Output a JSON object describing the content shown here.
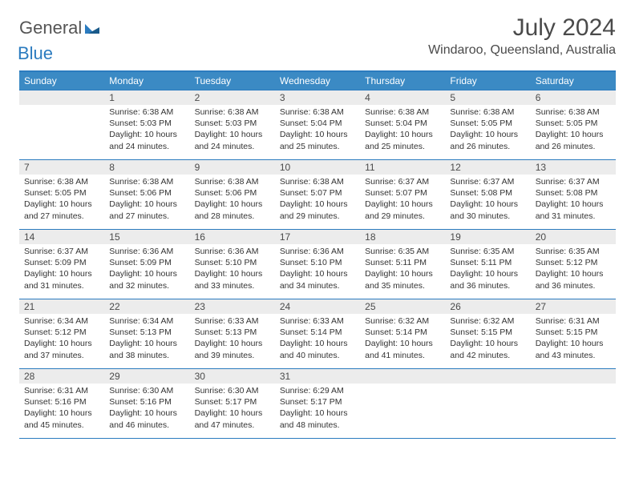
{
  "logo": {
    "general": "General",
    "blue": "Blue"
  },
  "title": "July 2024",
  "location": "Windaroo, Queensland, Australia",
  "colors": {
    "accent": "#2b7bbf",
    "header_bg": "#3b8ac4",
    "daynum_bg": "#ececec",
    "text": "#4a4a4a"
  },
  "dow": [
    "Sunday",
    "Monday",
    "Tuesday",
    "Wednesday",
    "Thursday",
    "Friday",
    "Saturday"
  ],
  "weeks": [
    [
      {
        "n": "",
        "sr": "",
        "ss": "",
        "dl": ""
      },
      {
        "n": "1",
        "sr": "6:38 AM",
        "ss": "5:03 PM",
        "dl": "10 hours and 24 minutes."
      },
      {
        "n": "2",
        "sr": "6:38 AM",
        "ss": "5:03 PM",
        "dl": "10 hours and 24 minutes."
      },
      {
        "n": "3",
        "sr": "6:38 AM",
        "ss": "5:04 PM",
        "dl": "10 hours and 25 minutes."
      },
      {
        "n": "4",
        "sr": "6:38 AM",
        "ss": "5:04 PM",
        "dl": "10 hours and 25 minutes."
      },
      {
        "n": "5",
        "sr": "6:38 AM",
        "ss": "5:05 PM",
        "dl": "10 hours and 26 minutes."
      },
      {
        "n": "6",
        "sr": "6:38 AM",
        "ss": "5:05 PM",
        "dl": "10 hours and 26 minutes."
      }
    ],
    [
      {
        "n": "7",
        "sr": "6:38 AM",
        "ss": "5:05 PM",
        "dl": "10 hours and 27 minutes."
      },
      {
        "n": "8",
        "sr": "6:38 AM",
        "ss": "5:06 PM",
        "dl": "10 hours and 27 minutes."
      },
      {
        "n": "9",
        "sr": "6:38 AM",
        "ss": "5:06 PM",
        "dl": "10 hours and 28 minutes."
      },
      {
        "n": "10",
        "sr": "6:38 AM",
        "ss": "5:07 PM",
        "dl": "10 hours and 29 minutes."
      },
      {
        "n": "11",
        "sr": "6:37 AM",
        "ss": "5:07 PM",
        "dl": "10 hours and 29 minutes."
      },
      {
        "n": "12",
        "sr": "6:37 AM",
        "ss": "5:08 PM",
        "dl": "10 hours and 30 minutes."
      },
      {
        "n": "13",
        "sr": "6:37 AM",
        "ss": "5:08 PM",
        "dl": "10 hours and 31 minutes."
      }
    ],
    [
      {
        "n": "14",
        "sr": "6:37 AM",
        "ss": "5:09 PM",
        "dl": "10 hours and 31 minutes."
      },
      {
        "n": "15",
        "sr": "6:36 AM",
        "ss": "5:09 PM",
        "dl": "10 hours and 32 minutes."
      },
      {
        "n": "16",
        "sr": "6:36 AM",
        "ss": "5:10 PM",
        "dl": "10 hours and 33 minutes."
      },
      {
        "n": "17",
        "sr": "6:36 AM",
        "ss": "5:10 PM",
        "dl": "10 hours and 34 minutes."
      },
      {
        "n": "18",
        "sr": "6:35 AM",
        "ss": "5:11 PM",
        "dl": "10 hours and 35 minutes."
      },
      {
        "n": "19",
        "sr": "6:35 AM",
        "ss": "5:11 PM",
        "dl": "10 hours and 36 minutes."
      },
      {
        "n": "20",
        "sr": "6:35 AM",
        "ss": "5:12 PM",
        "dl": "10 hours and 36 minutes."
      }
    ],
    [
      {
        "n": "21",
        "sr": "6:34 AM",
        "ss": "5:12 PM",
        "dl": "10 hours and 37 minutes."
      },
      {
        "n": "22",
        "sr": "6:34 AM",
        "ss": "5:13 PM",
        "dl": "10 hours and 38 minutes."
      },
      {
        "n": "23",
        "sr": "6:33 AM",
        "ss": "5:13 PM",
        "dl": "10 hours and 39 minutes."
      },
      {
        "n": "24",
        "sr": "6:33 AM",
        "ss": "5:14 PM",
        "dl": "10 hours and 40 minutes."
      },
      {
        "n": "25",
        "sr": "6:32 AM",
        "ss": "5:14 PM",
        "dl": "10 hours and 41 minutes."
      },
      {
        "n": "26",
        "sr": "6:32 AM",
        "ss": "5:15 PM",
        "dl": "10 hours and 42 minutes."
      },
      {
        "n": "27",
        "sr": "6:31 AM",
        "ss": "5:15 PM",
        "dl": "10 hours and 43 minutes."
      }
    ],
    [
      {
        "n": "28",
        "sr": "6:31 AM",
        "ss": "5:16 PM",
        "dl": "10 hours and 45 minutes."
      },
      {
        "n": "29",
        "sr": "6:30 AM",
        "ss": "5:16 PM",
        "dl": "10 hours and 46 minutes."
      },
      {
        "n": "30",
        "sr": "6:30 AM",
        "ss": "5:17 PM",
        "dl": "10 hours and 47 minutes."
      },
      {
        "n": "31",
        "sr": "6:29 AM",
        "ss": "5:17 PM",
        "dl": "10 hours and 48 minutes."
      },
      {
        "n": "",
        "sr": "",
        "ss": "",
        "dl": ""
      },
      {
        "n": "",
        "sr": "",
        "ss": "",
        "dl": ""
      },
      {
        "n": "",
        "sr": "",
        "ss": "",
        "dl": ""
      }
    ]
  ],
  "labels": {
    "sunrise": "Sunrise:",
    "sunset": "Sunset:",
    "daylight": "Daylight:"
  }
}
